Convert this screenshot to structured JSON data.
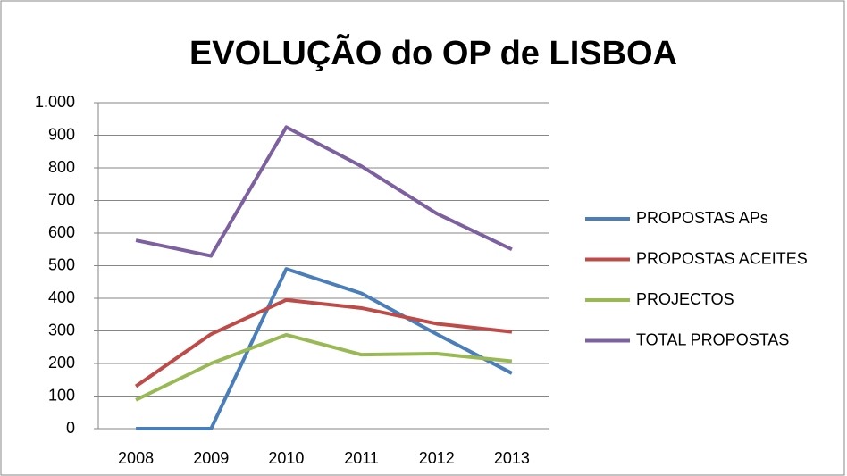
{
  "chart_data": {
    "type": "line",
    "title": "EVOLUÇÃO do OP de LISBOA",
    "categories": [
      "2008",
      "2009",
      "2010",
      "2011",
      "2012",
      "2013"
    ],
    "series": [
      {
        "name": "PROPOSTAS APs",
        "color": "#4a7ebb",
        "values": [
          0,
          0,
          490,
          415,
          290,
          170
        ]
      },
      {
        "name": "PROPOSTAS ACEITES",
        "color": "#be4b48",
        "values": [
          130,
          290,
          395,
          370,
          322,
          297
        ]
      },
      {
        "name": "PROJECTOS",
        "color": "#98b954",
        "values": [
          88,
          200,
          288,
          227,
          230,
          207
        ]
      },
      {
        "name": "TOTAL PROPOSTAS",
        "color": "#7d60a0",
        "values": [
          578,
          530,
          925,
          805,
          660,
          550
        ]
      }
    ],
    "ylim": [
      0,
      1000
    ],
    "yticks": [
      0,
      100,
      200,
      300,
      400,
      500,
      600,
      700,
      800,
      900,
      {
        "value": 1000,
        "label": "1.000"
      }
    ],
    "grid": true,
    "legend": "right"
  }
}
